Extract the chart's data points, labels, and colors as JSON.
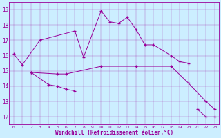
{
  "xlabel": "Windchill (Refroidissement éolien,°C)",
  "bg_color": "#cceeff",
  "line_color": "#990099",
  "xlim": [
    -0.5,
    23.5
  ],
  "ylim": [
    11.5,
    19.5
  ],
  "yticks": [
    12,
    13,
    14,
    15,
    16,
    17,
    18,
    19
  ],
  "xticks": [
    0,
    1,
    2,
    3,
    4,
    5,
    6,
    7,
    8,
    9,
    10,
    11,
    12,
    13,
    14,
    15,
    16,
    17,
    18,
    19,
    20,
    21,
    22,
    23
  ],
  "line1_x": [
    0,
    1,
    3,
    7,
    8,
    10,
    11,
    12,
    13,
    14,
    15,
    16,
    18,
    19,
    20
  ],
  "line1_y": [
    16.1,
    15.4,
    17.0,
    17.6,
    15.9,
    18.9,
    18.2,
    18.1,
    18.5,
    17.7,
    16.7,
    16.7,
    16.0,
    15.6,
    15.5
  ],
  "line2_x": [
    2,
    4,
    5,
    6,
    7
  ],
  "line2_y": [
    14.9,
    14.1,
    14.0,
    13.8,
    13.7
  ],
  "line3_x": [
    2,
    5,
    6,
    10,
    14,
    18,
    20,
    22,
    23
  ],
  "line3_y": [
    14.9,
    14.8,
    14.8,
    15.3,
    15.3,
    15.3,
    14.2,
    13.0,
    12.5
  ],
  "line4_x": [
    21,
    22,
    23
  ],
  "line4_y": [
    12.5,
    12.0,
    12.0
  ]
}
